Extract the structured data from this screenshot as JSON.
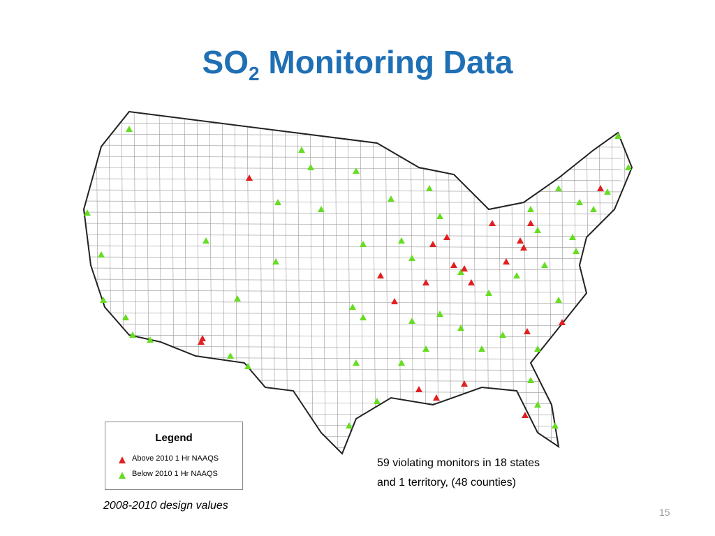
{
  "title": {
    "main": "SO",
    "subscript": "2",
    "rest": " Monitoring Data"
  },
  "legend": {
    "title": "Legend",
    "items": [
      "Above 2010 1 Hr NAAQS",
      "Below 2010 1 Hr NAAQS"
    ]
  },
  "annotation": {
    "lines": [
      "59 violating monitors in 18 states",
      "and 1 territory, (48 counties)"
    ]
  },
  "caption": "2008-2010 design values",
  "page_number": "15"
}
